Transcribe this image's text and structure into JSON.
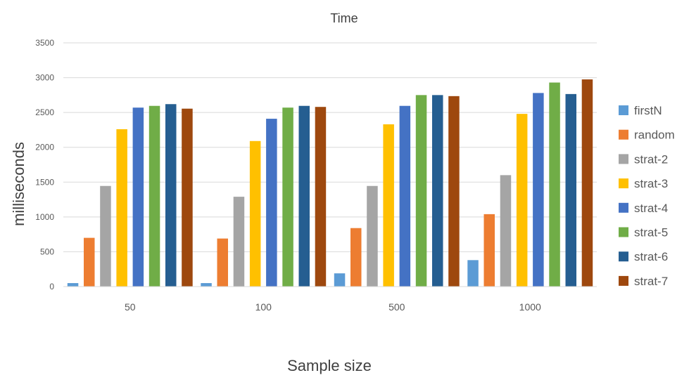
{
  "chart_data": {
    "type": "bar",
    "title": "Time",
    "xlabel": "Sample size",
    "ylabel": "milliseconds",
    "categories": [
      "50",
      "100",
      "500",
      "1000"
    ],
    "ylim": [
      0,
      3500
    ],
    "yticks": [
      0,
      500,
      1000,
      1500,
      2000,
      2500,
      3000,
      3500
    ],
    "grid": true,
    "legend_position": "right",
    "series": [
      {
        "name": "firstN",
        "color": "#5b9bd5",
        "values": [
          50,
          50,
          190,
          380
        ]
      },
      {
        "name": "random",
        "color": "#ed7d31",
        "values": [
          700,
          690,
          840,
          1040
        ]
      },
      {
        "name": "strat-2",
        "color": "#a5a5a5",
        "values": [
          1445,
          1290,
          1445,
          1600
        ]
      },
      {
        "name": "strat-3",
        "color": "#ffc000",
        "values": [
          2260,
          2090,
          2330,
          2480
        ]
      },
      {
        "name": "strat-4",
        "color": "#4472c4",
        "values": [
          2570,
          2410,
          2595,
          2780
        ]
      },
      {
        "name": "strat-5",
        "color": "#70ad47",
        "values": [
          2595,
          2570,
          2750,
          2930
        ]
      },
      {
        "name": "strat-6",
        "color": "#255e91",
        "values": [
          2620,
          2595,
          2750,
          2765
        ]
      },
      {
        "name": "strat-7",
        "color": "#9e480e",
        "values": [
          2555,
          2580,
          2735,
          2975
        ]
      }
    ]
  }
}
